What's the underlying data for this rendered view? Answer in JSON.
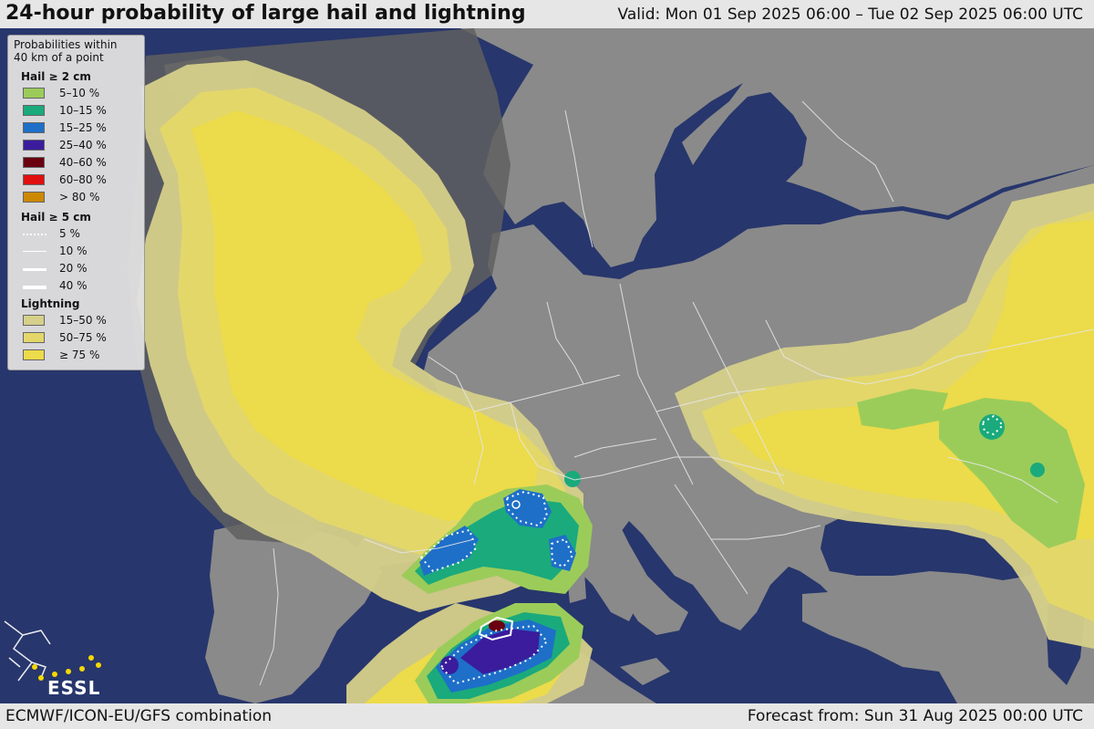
{
  "header": {
    "title": "24-hour probability of large hail and lightning",
    "valid": "Valid: Mon 01 Sep 2025 06:00 – Tue 02 Sep 2025 06:00 UTC"
  },
  "footer": {
    "models": "ECMWF/ICON-EU/GFS combination",
    "forecast": "Forecast from: Sun 31 Aug 2025 00:00 UTC"
  },
  "legend": {
    "intro": [
      "Probabilities within",
      "40 km of a point"
    ],
    "hail2": {
      "title": "Hail ≥ 2 cm",
      "items": [
        {
          "label": "5–10 %",
          "color": "#9bcc5a"
        },
        {
          "label": "10–15 %",
          "color": "#1aaa7c"
        },
        {
          "label": "15–25 %",
          "color": "#1e6fc8"
        },
        {
          "label": "25–40 %",
          "color": "#3a1c9c"
        },
        {
          "label": "40–60 %",
          "color": "#6a0010"
        },
        {
          "label": "60–80 %",
          "color": "#e01010"
        },
        {
          "label": "> 80 %",
          "color": "#cc8800"
        }
      ]
    },
    "hail5": {
      "title": "Hail ≥ 5 cm",
      "items": [
        {
          "label": "5 %",
          "style": "dotted"
        },
        {
          "label": "10 %",
          "style": "thin"
        },
        {
          "label": "20 %",
          "style": "medium"
        },
        {
          "label": "40 %",
          "style": "thick"
        }
      ]
    },
    "lightning": {
      "title": "Lightning",
      "items": [
        {
          "label": "15–50 %",
          "color": "#d6d08a"
        },
        {
          "label": "50–75 %",
          "color": "#e3d76a"
        },
        {
          "label": "≥ 75 %",
          "color": "#ecdb4a"
        }
      ]
    }
  },
  "logo": {
    "text": "ESSL"
  },
  "colors": {
    "sea": "#27366c",
    "land": "#8a8a8a",
    "land_shadow": "#5f5f5f",
    "border": "#e6e6e6"
  }
}
